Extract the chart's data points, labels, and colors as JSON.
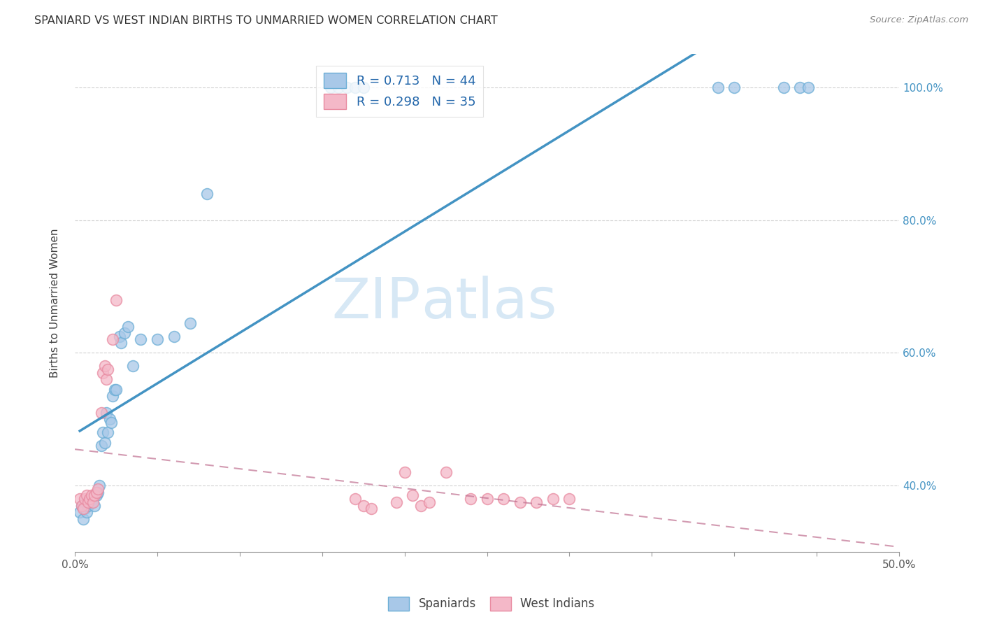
{
  "title": "SPANIARD VS WEST INDIAN BIRTHS TO UNMARRIED WOMEN CORRELATION CHART",
  "source": "Source: ZipAtlas.com",
  "ylabel": "Births to Unmarried Women",
  "xlim": [
    0.0,
    0.5
  ],
  "ylim": [
    0.3,
    1.05
  ],
  "xtick_pos": [
    0.0,
    0.05,
    0.1,
    0.15,
    0.2,
    0.25,
    0.3,
    0.35,
    0.4,
    0.45,
    0.5
  ],
  "xticklabels": [
    "0.0%",
    "",
    "",
    "",
    "",
    "",
    "",
    "",
    "",
    "",
    "50.0%"
  ],
  "ytick_positions": [
    0.4,
    0.6,
    0.8,
    1.0
  ],
  "yticklabels": [
    "40.0%",
    "60.0%",
    "80.0%",
    "100.0%"
  ],
  "legend_r1": "R = 0.713   N = 44",
  "legend_r2": "R = 0.298   N = 35",
  "legend_label1": "Spaniards",
  "legend_label2": "West Indians",
  "blue_color": "#a8c8e8",
  "blue_edge_color": "#6baed6",
  "pink_color": "#f4b8c8",
  "pink_edge_color": "#e88aa0",
  "blue_line_color": "#4393c3",
  "pink_line_color": "#c07090",
  "watermark_color": "#d0e4f4",
  "spaniards_x": [
    0.003,
    0.004,
    0.005,
    0.006,
    0.006,
    0.007,
    0.008,
    0.009,
    0.01,
    0.011,
    0.012,
    0.013,
    0.014,
    0.015,
    0.016,
    0.017,
    0.018,
    0.019,
    0.02,
    0.021,
    0.022,
    0.023,
    0.024,
    0.025,
    0.027,
    0.028,
    0.03,
    0.032,
    0.035,
    0.04,
    0.05,
    0.06,
    0.07,
    0.08,
    0.155,
    0.16,
    0.165,
    0.17,
    0.175,
    0.39,
    0.4,
    0.43,
    0.44,
    0.445
  ],
  "spaniards_y": [
    0.36,
    0.37,
    0.35,
    0.365,
    0.375,
    0.36,
    0.37,
    0.375,
    0.375,
    0.38,
    0.37,
    0.385,
    0.39,
    0.4,
    0.46,
    0.48,
    0.465,
    0.51,
    0.48,
    0.5,
    0.495,
    0.535,
    0.545,
    0.545,
    0.625,
    0.615,
    0.63,
    0.64,
    0.58,
    0.62,
    0.62,
    0.625,
    0.645,
    0.84,
    1.0,
    1.0,
    1.0,
    1.0,
    1.0,
    1.0,
    1.0,
    1.0,
    1.0,
    1.0
  ],
  "westindians_x": [
    0.003,
    0.004,
    0.005,
    0.006,
    0.007,
    0.008,
    0.009,
    0.01,
    0.011,
    0.012,
    0.013,
    0.014,
    0.016,
    0.017,
    0.018,
    0.019,
    0.02,
    0.023,
    0.025,
    0.17,
    0.175,
    0.18,
    0.195,
    0.2,
    0.205,
    0.21,
    0.215,
    0.225,
    0.24,
    0.25,
    0.26,
    0.27,
    0.28,
    0.29,
    0.3
  ],
  "westindians_y": [
    0.38,
    0.37,
    0.365,
    0.38,
    0.385,
    0.375,
    0.38,
    0.385,
    0.375,
    0.385,
    0.39,
    0.395,
    0.51,
    0.57,
    0.58,
    0.56,
    0.575,
    0.62,
    0.68,
    0.38,
    0.37,
    0.365,
    0.375,
    0.42,
    0.385,
    0.37,
    0.375,
    0.42,
    0.38,
    0.38,
    0.38,
    0.375,
    0.375,
    0.38,
    0.38
  ],
  "blue_line_x0": 0.003,
  "blue_line_x1": 0.445,
  "pink_line_x0": 0.003,
  "pink_line_x1": 0.445
}
